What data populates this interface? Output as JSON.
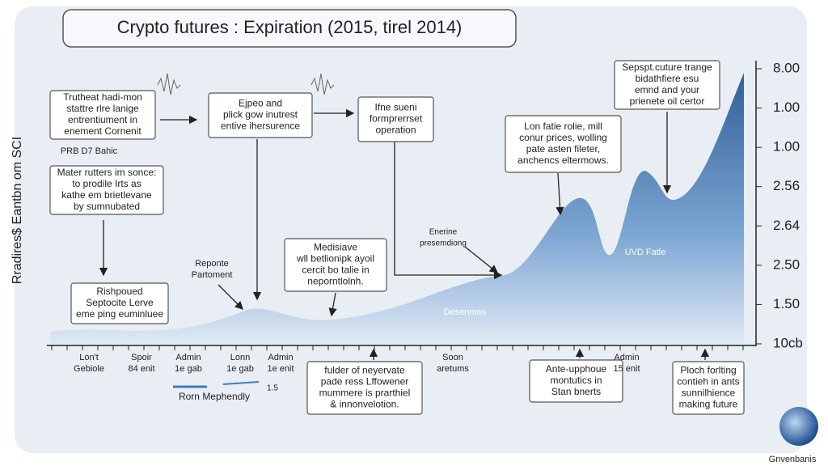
{
  "title": "Crypto futures : Expiration (2015, tirel 2014)",
  "y_axis_label": "Rradires$ Eantbn om SCI",
  "right_axis_labels": [
    "8.00",
    "1.00",
    "1.00",
    "2.56",
    "2.64",
    "2.50",
    "1.50",
    "10cb"
  ],
  "callouts": [
    {
      "lines": [
        "Trutheat hadi-mon",
        "stattre rlre lanige",
        "entrentiument in",
        "enement Cornenit"
      ]
    },
    {
      "lines": [
        "Mater rutters im sonce:",
        "to prodile Irts as",
        "kathe em brietlevane",
        "by sumnubated"
      ]
    },
    {
      "lines": [
        "Ejpeo and",
        "plick gow inutrest",
        "entive ihersurence"
      ]
    },
    {
      "lines": [
        "Ifne sueni",
        "formprerrset",
        "operation"
      ]
    },
    {
      "lines": [
        "Lon fatie rolie, mill",
        "conur prices, wolling",
        "pate asten fileter,",
        "anchencs eltermows."
      ]
    },
    {
      "lines": [
        "Sepspt.cuture trange",
        "bidathfiere esu",
        "emnd and your",
        "prienete oil certor"
      ]
    },
    {
      "lines": [
        "Medisiave",
        "wll betlionipk ayoil",
        "cercit bo talie in",
        "neporntlolnh."
      ]
    },
    {
      "lines": [
        "Rishpoued",
        "Septocite Lerve",
        "eme ping euminluee"
      ]
    },
    {
      "lines": [
        "fulder of neyervate",
        "pade ress Lffowener",
        "mummere is prarthiel",
        "& innonvelotion."
      ]
    },
    {
      "lines": [
        "Ante-upphoue",
        "montutics in",
        "Stan bnerts"
      ]
    },
    {
      "lines": [
        "Ploch forlting",
        "contieh in ants",
        "sunnilhience",
        "making future"
      ]
    }
  ],
  "free_labels": [
    {
      "lines": [
        "PRB D7 Bahic"
      ]
    },
    {
      "lines": [
        "Reponte",
        "Partoment"
      ]
    },
    {
      "lines": [
        "Enerine",
        "presemdiong"
      ]
    },
    {
      "lines": [
        "UVD Fatle"
      ]
    },
    {
      "lines": [
        "Desenmes"
      ]
    }
  ],
  "x_labels": [
    {
      "lines": [
        "Lon't",
        "Gebiole"
      ]
    },
    {
      "lines": [
        "Spoir",
        "84 enit"
      ]
    },
    {
      "lines": [
        "Admin",
        "1e gab"
      ]
    },
    {
      "lines": [
        "Lonn",
        "1e gab"
      ]
    },
    {
      "lines": [
        "Admin",
        "1e enit"
      ]
    },
    {
      "lines": [
        "Soon",
        "aretums"
      ]
    },
    {
      "lines": [
        "Admin",
        "15 enit"
      ]
    }
  ],
  "legend": {
    "label": "Rorn Mephendly",
    "note": "1.5"
  },
  "footer": "Gnvenbanis"
}
